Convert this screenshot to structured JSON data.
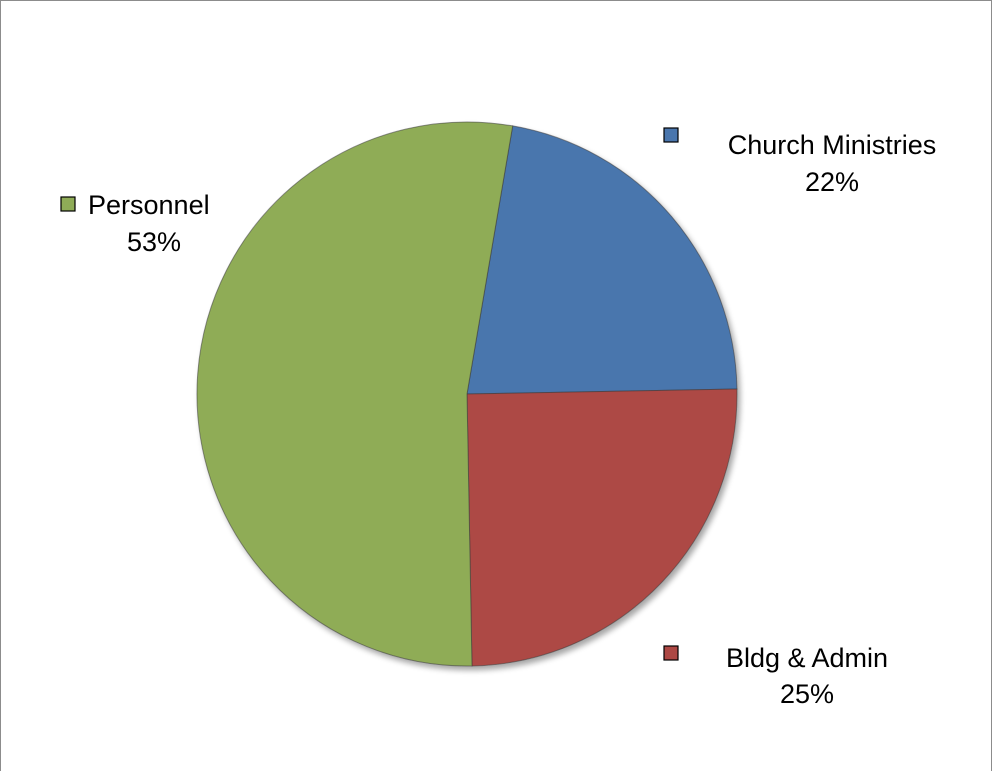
{
  "chart_data": {
    "type": "pie",
    "title": "",
    "slices": [
      {
        "label": "Church Ministries",
        "value": 22,
        "percent_label": "22%",
        "color": "#4a76ad"
      },
      {
        "label": "Bldg & Admin",
        "value": 25,
        "percent_label": "25%",
        "color": "#ad4844"
      },
      {
        "label": "Personnel",
        "value": 53,
        "percent_label": "53%",
        "color": "#8fac57"
      }
    ],
    "legend": "none",
    "data_labels": "category name and percentage, outside slices with color key squares"
  }
}
